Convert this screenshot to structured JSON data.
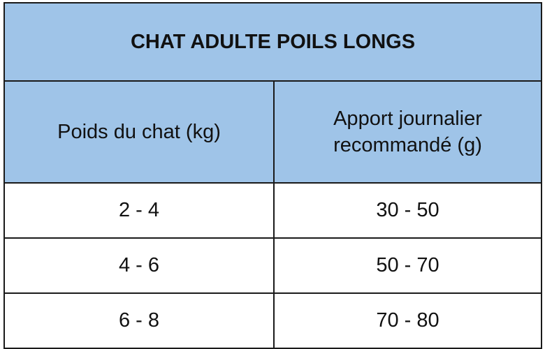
{
  "title": "CHAT ADULTE POILS LONGS",
  "headers": [
    "Poids du chat (kg)",
    "Apport journalier recommandé (g)"
  ],
  "rows": [
    [
      "2 - 4",
      "30 - 50"
    ],
    [
      "4 - 6",
      "50 - 70"
    ],
    [
      "6 - 8",
      "70 - 80"
    ]
  ],
  "colors": {
    "header_bg": "#9fc4e8",
    "border": "#1a1a1a"
  }
}
